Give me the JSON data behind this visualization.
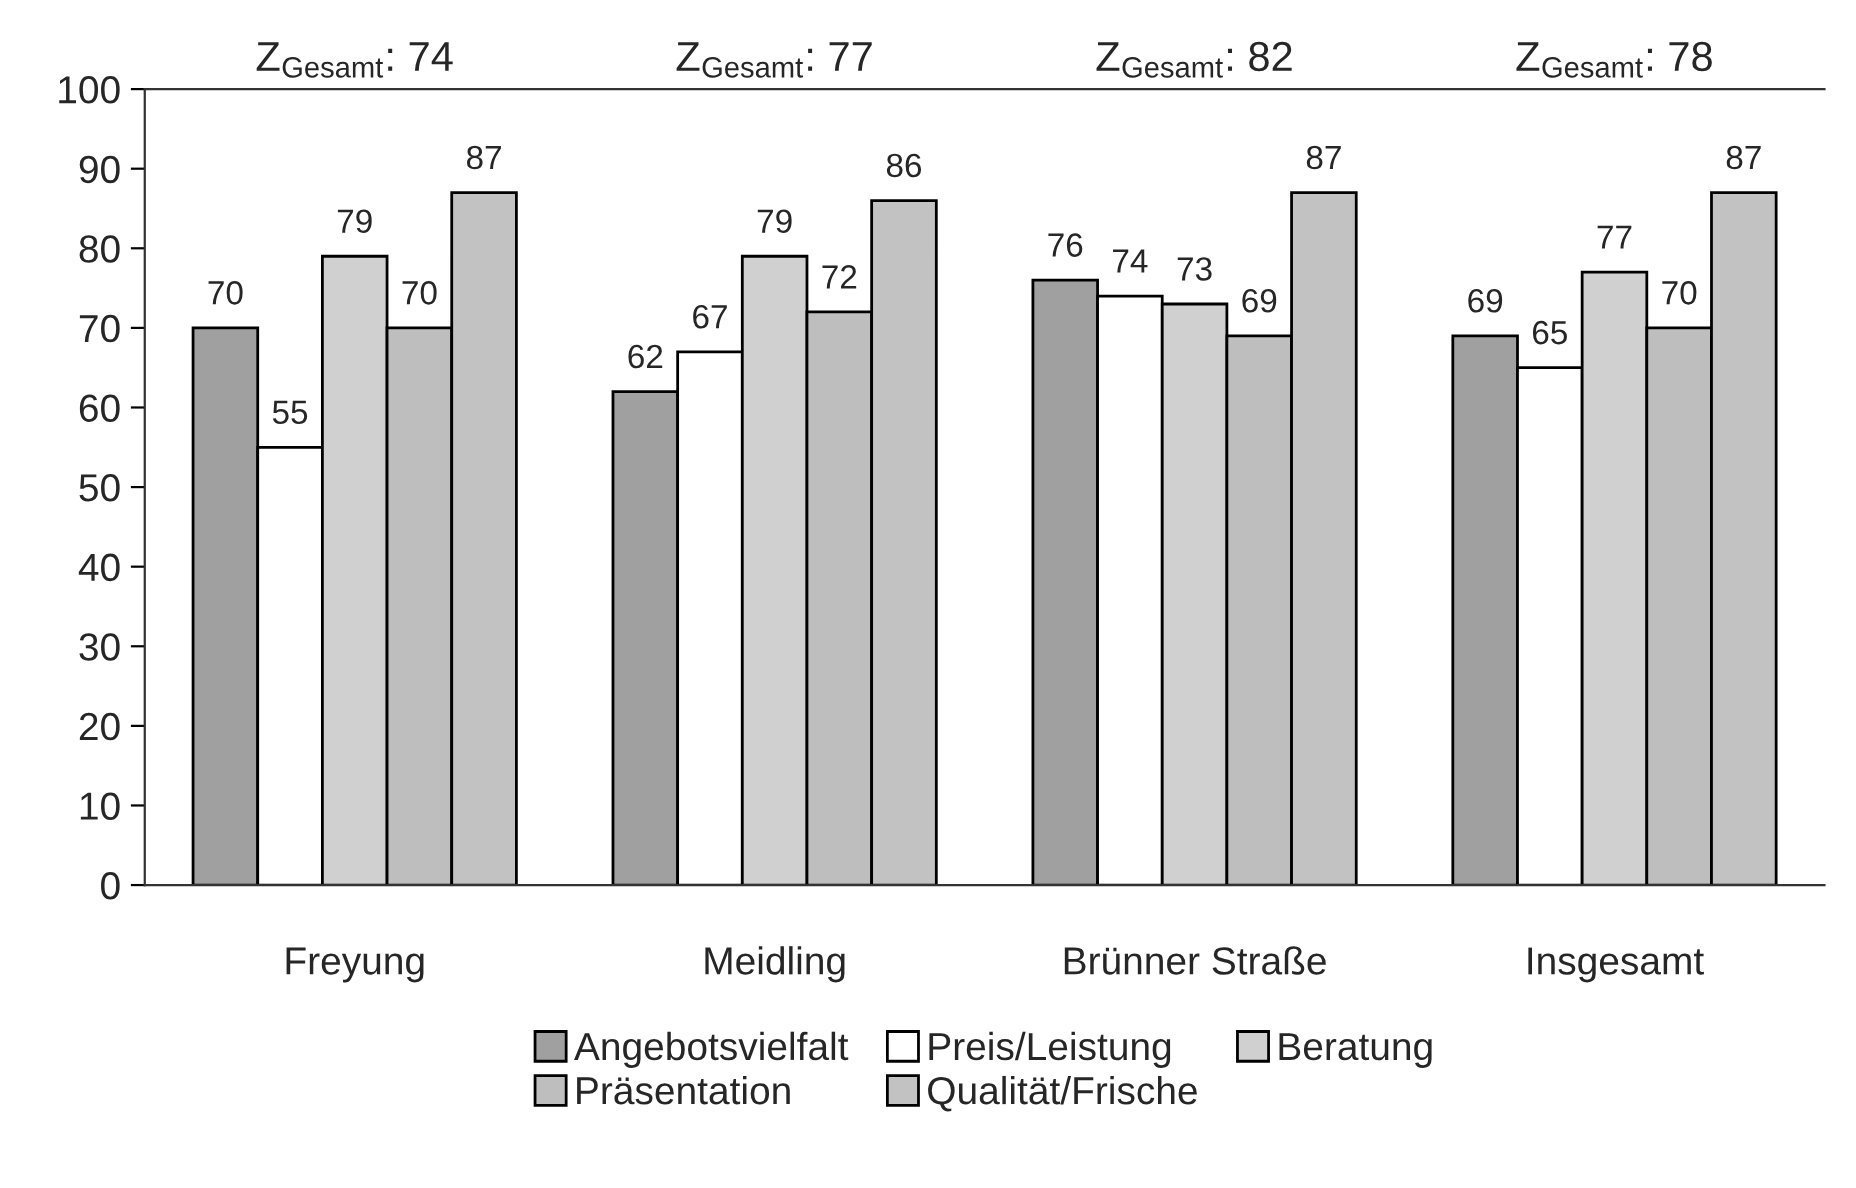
{
  "chart_data": {
    "type": "bar",
    "categories": [
      "Freyung",
      "Meidling",
      "Brünner Straße",
      "Insgesamt"
    ],
    "series": [
      {
        "name": "Angebotsvielfalt",
        "color": "#a0a0a0",
        "values": [
          70,
          62,
          76,
          69
        ]
      },
      {
        "name": "Preis/Leistung",
        "color": "#ffffff",
        "values": [
          55,
          67,
          74,
          65
        ]
      },
      {
        "name": "Beratung",
        "color": "#d0d0d0",
        "values": [
          79,
          79,
          73,
          77
        ]
      },
      {
        "name": "Präsentation",
        "color": "#bebebe",
        "values": [
          70,
          72,
          69,
          70
        ]
      },
      {
        "name": "Qualität/Frische",
        "color": "#c2c2c2",
        "values": [
          87,
          86,
          87,
          87
        ]
      }
    ],
    "annotations": [
      "Z$_{Gesamt}$: 74",
      "Z$_{Gesamt}$: 77",
      "Z$_{Gesamt}$: 82",
      "Z$_{Gesamt}$: 78"
    ],
    "ylim": [
      0,
      100
    ],
    "yticks": [
      0,
      10,
      20,
      30,
      40,
      50,
      60,
      70,
      80,
      90,
      100
    ],
    "data_labels": true,
    "grid": false,
    "legend": "bottom"
  }
}
